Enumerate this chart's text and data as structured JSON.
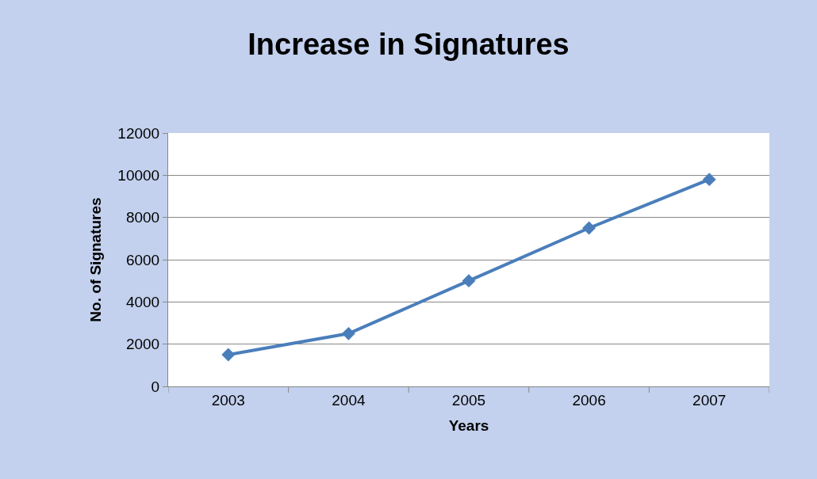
{
  "chart_data": {
    "type": "line",
    "title": "Increase in Signatures",
    "xlabel": "Years",
    "ylabel": "No. of Signatures",
    "categories": [
      "2003",
      "2004",
      "2005",
      "2006",
      "2007"
    ],
    "series": [
      {
        "color": "#4a7ebb",
        "values": [
          1500,
          2500,
          5000,
          7500,
          9800
        ]
      }
    ],
    "ylim": [
      0,
      12000
    ],
    "yticks": [
      0,
      2000,
      4000,
      6000,
      8000,
      10000,
      12000
    ],
    "grid": "y",
    "legend": false,
    "marker": "diamond",
    "line_style": "solid"
  }
}
